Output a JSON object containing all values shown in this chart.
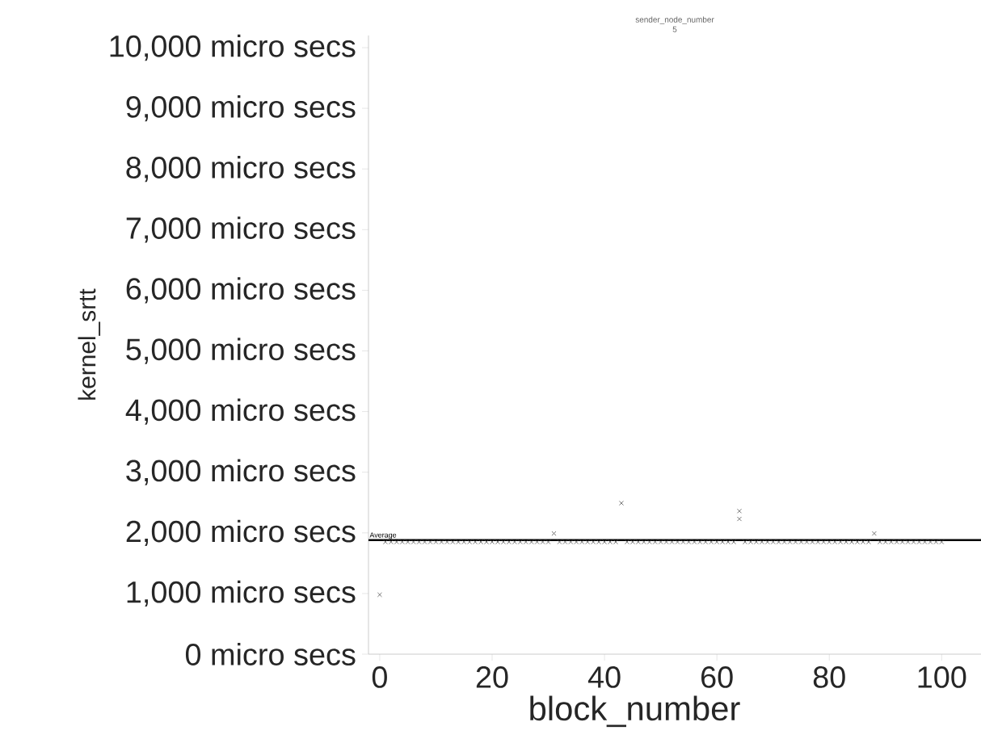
{
  "chart_data": {
    "type": "scatter",
    "title": "sender_node_number",
    "subtitle": "5",
    "xlabel": "block_number",
    "ylabel": "kernel_srtt",
    "x": [
      0,
      1,
      2,
      3,
      4,
      5,
      6,
      7,
      8,
      9,
      10,
      11,
      12,
      13,
      14,
      15,
      16,
      17,
      18,
      19,
      20,
      21,
      22,
      23,
      24,
      25,
      26,
      27,
      28,
      29,
      30,
      31,
      32,
      33,
      34,
      35,
      36,
      37,
      38,
      39,
      40,
      41,
      42,
      43,
      44,
      45,
      46,
      47,
      48,
      49,
      50,
      51,
      52,
      53,
      54,
      55,
      56,
      57,
      58,
      59,
      60,
      61,
      62,
      63,
      64,
      65,
      66,
      67,
      68,
      69,
      70,
      71,
      72,
      73,
      74,
      75,
      76,
      77,
      78,
      79,
      80,
      81,
      82,
      83,
      84,
      85,
      86,
      87,
      88,
      89,
      90,
      91,
      92,
      93,
      94,
      95,
      96,
      97,
      98,
      99,
      100,
      64
    ],
    "series": [
      {
        "color": "#555555",
        "values": [
          980,
          1850,
          1850,
          1850,
          1850,
          1850,
          1850,
          1850,
          1850,
          1850,
          1850,
          1850,
          1850,
          1850,
          1850,
          1850,
          1850,
          1850,
          1850,
          1850,
          1850,
          1850,
          1850,
          1850,
          1850,
          1850,
          1850,
          1850,
          1850,
          1850,
          1850,
          1990,
          1850,
          1850,
          1850,
          1850,
          1850,
          1850,
          1850,
          1850,
          1850,
          1850,
          1850,
          2490,
          1850,
          1850,
          1850,
          1850,
          1850,
          1850,
          1850,
          1850,
          1850,
          1850,
          1850,
          1850,
          1850,
          1850,
          1850,
          1850,
          1850,
          1850,
          1850,
          1850,
          2360,
          1850,
          1850,
          1850,
          1850,
          1850,
          1850,
          1850,
          1850,
          1850,
          1850,
          1850,
          1850,
          1850,
          1850,
          1850,
          1850,
          1850,
          1850,
          1850,
          1850,
          1850,
          1850,
          1850,
          1990,
          1850,
          1850,
          1850,
          1850,
          1850,
          1850,
          1850,
          1850,
          1850,
          1850,
          1850,
          1850,
          2230
        ]
      }
    ],
    "xlim": [
      -2,
      107
    ],
    "ylim": [
      0,
      10200
    ],
    "xticks": [
      0,
      20,
      40,
      60,
      80,
      100
    ],
    "yticks": [
      {
        "value": 0,
        "label": "0 micro secs"
      },
      {
        "value": 1000,
        "label": "1,000 micro secs"
      },
      {
        "value": 2000,
        "label": "2,000 micro secs"
      },
      {
        "value": 3000,
        "label": "3,000 micro secs"
      },
      {
        "value": 4000,
        "label": "4,000 micro secs"
      },
      {
        "value": 5000,
        "label": "5,000 micro secs"
      },
      {
        "value": 6000,
        "label": "6,000 micro secs"
      },
      {
        "value": 7000,
        "label": "7,000 micro secs"
      },
      {
        "value": 8000,
        "label": "8,000 micro secs"
      },
      {
        "value": 9000,
        "label": "9,000 micro secs"
      },
      {
        "value": 10000,
        "label": "10,000 micro secs"
      }
    ],
    "ref_lines": [
      {
        "axis": "y",
        "value": 1880,
        "label": "Average",
        "color": "#000000"
      }
    ],
    "marker": "cross",
    "grid": false
  }
}
